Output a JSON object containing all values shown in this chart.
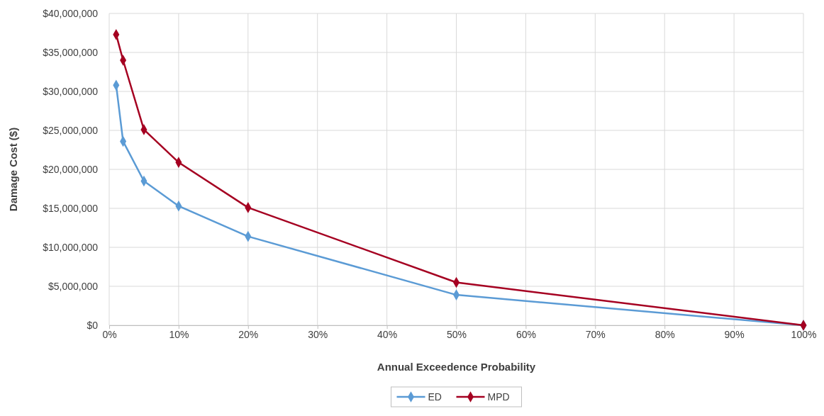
{
  "chart_data": {
    "type": "line",
    "xlabel": "Annual Exceedence Probability",
    "ylabel": "Damage Cost ($)",
    "x": [
      1,
      2,
      5,
      10,
      20,
      50,
      100
    ],
    "series": [
      {
        "name": "ED",
        "color": "#5b9bd5",
        "values": [
          30800000,
          23600000,
          18500000,
          15300000,
          11400000,
          3900000,
          0
        ]
      },
      {
        "name": "MPD",
        "color": "#a50021",
        "values": [
          37300000,
          34000000,
          25100000,
          20900000,
          15100000,
          5500000,
          0
        ]
      }
    ],
    "xlim": [
      0,
      100
    ],
    "xticks": [
      {
        "value": 0,
        "label": "0%"
      },
      {
        "value": 10,
        "label": "10%"
      },
      {
        "value": 20,
        "label": "20%"
      },
      {
        "value": 30,
        "label": "30%"
      },
      {
        "value": 40,
        "label": "40%"
      },
      {
        "value": 50,
        "label": "50%"
      },
      {
        "value": 60,
        "label": "60%"
      },
      {
        "value": 70,
        "label": "70%"
      },
      {
        "value": 80,
        "label": "80%"
      },
      {
        "value": 90,
        "label": "90%"
      },
      {
        "value": 100,
        "label": "100%"
      }
    ],
    "ylim": [
      0,
      40000000
    ],
    "yticks": [
      {
        "value": 0,
        "label": "$0"
      },
      {
        "value": 5000000,
        "label": "$5,000,000"
      },
      {
        "value": 10000000,
        "label": "$10,000,000"
      },
      {
        "value": 15000000,
        "label": "$15,000,000"
      },
      {
        "value": 20000000,
        "label": "$20,000,000"
      },
      {
        "value": 25000000,
        "label": "$25,000,000"
      },
      {
        "value": 30000000,
        "label": "$30,000,000"
      },
      {
        "value": 35000000,
        "label": "$35,000,000"
      },
      {
        "value": 40000000,
        "label": "$40,000,000"
      }
    ],
    "grid": true,
    "legend": "bottom",
    "marker": "diamond",
    "line_style": "solid"
  }
}
